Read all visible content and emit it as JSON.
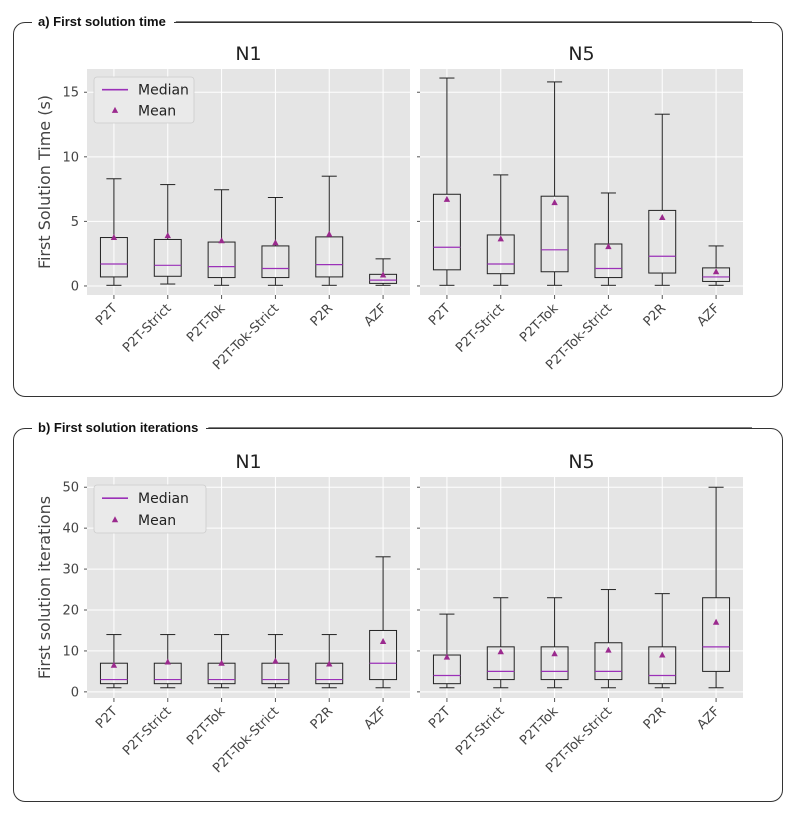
{
  "panels": {
    "a": {
      "title": "a) First solution time"
    },
    "b": {
      "title": "b) First solution iterations"
    }
  },
  "legend": {
    "median_label": "Median",
    "mean_label": "Mean"
  },
  "colors": {
    "plot_bg": "#e5e5e5",
    "grid": "#ffffff",
    "box": "#222222",
    "median": "#9b30b8",
    "mean": "#9b2a8e"
  },
  "chart_data": [
    {
      "type": "box",
      "panel": "a",
      "title": "N1",
      "ylabel": "First Solution Time (s)",
      "ylim": [
        -0.7,
        16.8
      ],
      "yticks": [
        0,
        5,
        10,
        15
      ],
      "categories": [
        "P2T",
        "P2T-Strict",
        "P2T-Tok",
        "P2T-Tok-Strict",
        "P2R",
        "AZF"
      ],
      "whisker_low": [
        0.05,
        0.15,
        0.05,
        0.05,
        0.05,
        0.05
      ],
      "q1": [
        0.7,
        0.75,
        0.65,
        0.65,
        0.7,
        0.2
      ],
      "median": [
        1.7,
        1.6,
        1.5,
        1.35,
        1.65,
        0.45
      ],
      "q3": [
        3.75,
        3.6,
        3.4,
        3.1,
        3.8,
        0.9
      ],
      "whisker_high": [
        8.3,
        7.85,
        7.45,
        6.85,
        8.5,
        2.1
      ],
      "mean": [
        3.75,
        3.9,
        3.5,
        3.35,
        4.0,
        0.85
      ],
      "show_legend": true
    },
    {
      "type": "box",
      "panel": "a",
      "title": "N5",
      "ylabel": "",
      "ylim": [
        -0.7,
        16.8
      ],
      "yticks": [
        0,
        5,
        10,
        15
      ],
      "categories": [
        "P2T",
        "P2T-Strict",
        "P2T-Tok",
        "P2T-Tok-Strict",
        "P2R",
        "AZF"
      ],
      "whisker_low": [
        0.05,
        0.05,
        0.05,
        0.05,
        0.05,
        0.05
      ],
      "q1": [
        1.25,
        0.95,
        1.1,
        0.65,
        1.0,
        0.35
      ],
      "median": [
        3.0,
        1.7,
        2.8,
        1.35,
        2.3,
        0.7
      ],
      "q3": [
        7.1,
        3.95,
        6.95,
        3.25,
        5.85,
        1.4
      ],
      "whisker_high": [
        16.1,
        8.6,
        15.8,
        7.2,
        13.3,
        3.1
      ],
      "mean": [
        6.7,
        3.65,
        6.45,
        3.05,
        5.3,
        1.1
      ],
      "show_legend": false
    },
    {
      "type": "box",
      "panel": "b",
      "title": "N1",
      "ylabel": "First solution iterations",
      "ylim": [
        -1.5,
        52.5
      ],
      "yticks": [
        0,
        10,
        20,
        30,
        40,
        50
      ],
      "categories": [
        "P2T",
        "P2T-Strict",
        "P2T-Tok",
        "P2T-Tok-Strict",
        "P2R",
        "AZF"
      ],
      "whisker_low": [
        1,
        1,
        1,
        1,
        1,
        1
      ],
      "q1": [
        2,
        2,
        2,
        2,
        2,
        3
      ],
      "median": [
        3,
        3,
        3,
        3,
        3,
        7
      ],
      "q3": [
        7,
        7,
        7,
        7,
        7,
        15
      ],
      "whisker_high": [
        14,
        14,
        14,
        14,
        14,
        33
      ],
      "mean": [
        6.5,
        7.3,
        7.0,
        7.5,
        6.8,
        12.3
      ],
      "show_legend": true
    },
    {
      "type": "box",
      "panel": "b",
      "title": "N5",
      "ylabel": "",
      "ylim": [
        -1.5,
        52.5
      ],
      "yticks": [
        0,
        10,
        20,
        30,
        40,
        50
      ],
      "categories": [
        "P2T",
        "P2T-Strict",
        "P2T-Tok",
        "P2T-Tok-Strict",
        "P2R",
        "AZF"
      ],
      "whisker_low": [
        1,
        1,
        1,
        1,
        1,
        1
      ],
      "q1": [
        2,
        3,
        3,
        3,
        2,
        5
      ],
      "median": [
        4,
        5,
        5,
        5,
        4,
        11
      ],
      "q3": [
        9,
        11,
        11,
        12,
        11,
        23
      ],
      "whisker_high": [
        19,
        23,
        23,
        25,
        24,
        50
      ],
      "mean": [
        8.5,
        9.8,
        9.3,
        10.2,
        9.0,
        17.0
      ],
      "show_legend": false
    }
  ]
}
